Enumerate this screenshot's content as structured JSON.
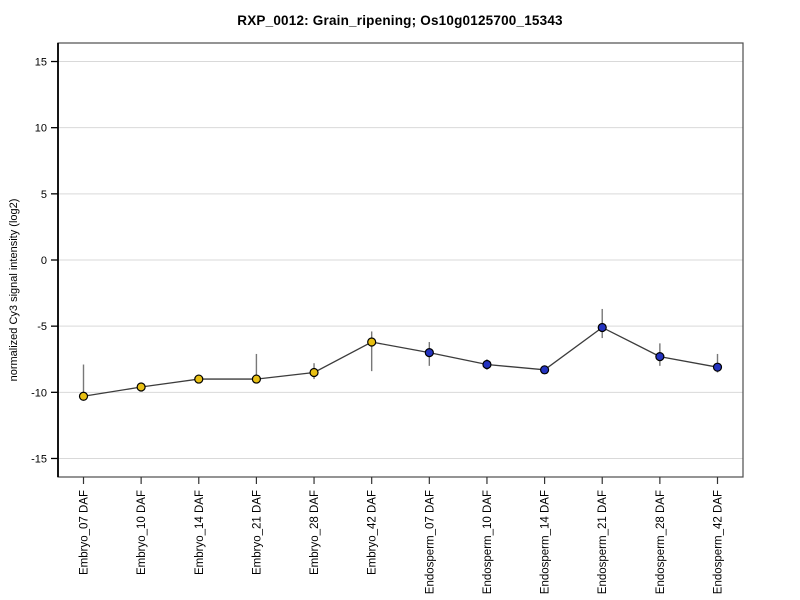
{
  "window": {
    "background": "#ffffff"
  },
  "chart_data": {
    "type": "line",
    "title": "RXP_0012: Grain_ripening; Os10g0125700_15343",
    "ylabel": "normalized Cy3 signal intensity (log2)",
    "xlabel": "",
    "ylim": [
      -16.4,
      16.4
    ],
    "yticks": [
      15,
      10,
      5,
      0,
      -5,
      -10,
      -15
    ],
    "grid": "horizontal",
    "legend": "none",
    "line_color": "#3c3c3c",
    "errorbar_color": "#787878",
    "gridline_color": "#d9d9d9",
    "groups": [
      {
        "name": "Embryo",
        "color": "#e8c014"
      },
      {
        "name": "Endosperm",
        "color": "#2433c0"
      }
    ],
    "categories": [
      "Embryo_07 DAF",
      "Embryo_10 DAF",
      "Embryo_14 DAF",
      "Embryo_21 DAF",
      "Embryo_28 DAF",
      "Embryo_42 DAF",
      "Endosperm_07 DAF",
      "Endosperm_10 DAF",
      "Endosperm_14 DAF",
      "Endosperm_21 DAF",
      "Endosperm_28 DAF",
      "Endosperm_42 DAF"
    ],
    "points": [
      {
        "label": "Embryo_07 DAF",
        "group": "Embryo",
        "value": -10.3,
        "err_low": -10.4,
        "err_high": -7.9
      },
      {
        "label": "Embryo_10 DAF",
        "group": "Embryo",
        "value": -9.6,
        "err_low": -9.9,
        "err_high": -9.4
      },
      {
        "label": "Embryo_14 DAF",
        "group": "Embryo",
        "value": -9.0,
        "err_low": -9.2,
        "err_high": -8.7
      },
      {
        "label": "Embryo_21 DAF",
        "group": "Embryo",
        "value": -9.0,
        "err_low": -9.1,
        "err_high": -7.1
      },
      {
        "label": "Embryo_28 DAF",
        "group": "Embryo",
        "value": -8.5,
        "err_low": -9.0,
        "err_high": -7.8
      },
      {
        "label": "Embryo_42 DAF",
        "group": "Embryo",
        "value": -6.2,
        "err_low": -8.4,
        "err_high": -5.4
      },
      {
        "label": "Endosperm_07 DAF",
        "group": "Endosperm",
        "value": -7.0,
        "err_low": -8.0,
        "err_high": -6.2
      },
      {
        "label": "Endosperm_10 DAF",
        "group": "Endosperm",
        "value": -7.9,
        "err_low": -8.3,
        "err_high": -7.5
      },
      {
        "label": "Endosperm_14 DAF",
        "group": "Endosperm",
        "value": -8.3,
        "err_low": -8.4,
        "err_high": -8.2
      },
      {
        "label": "Endosperm_21 DAF",
        "group": "Endosperm",
        "value": -5.1,
        "err_low": -5.9,
        "err_high": -3.7
      },
      {
        "label": "Endosperm_28 DAF",
        "group": "Endosperm",
        "value": -7.3,
        "err_low": -8.0,
        "err_high": -6.3
      },
      {
        "label": "Endosperm_42 DAF",
        "group": "Endosperm",
        "value": -8.1,
        "err_low": -8.5,
        "err_high": -7.1
      }
    ]
  }
}
